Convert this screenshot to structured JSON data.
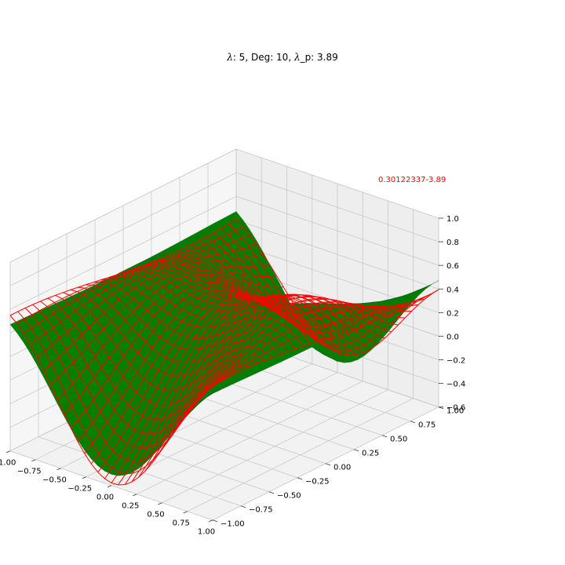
{
  "chart_data": {
    "type": "surface3d",
    "title": {
      "lambda_symbol": "λ",
      "lambda_value_text": ": 5, Deg: 10, ",
      "lambda_p_symbol": "λ",
      "lambda_p_text": "_p: 3.89"
    },
    "annotation": "0.30122337-3.89",
    "x_ticks": [
      "−1.00",
      "−0.75",
      "−0.50",
      "−0.25",
      "0.00",
      "0.25",
      "0.50",
      "0.75",
      "1.00"
    ],
    "y_ticks": [
      "−1.00",
      "−0.75",
      "−0.50",
      "−0.25",
      "0.00",
      "0.25",
      "0.50",
      "0.75",
      "1.00"
    ],
    "z_ticks": [
      "−0.6",
      "−0.4",
      "−0.2",
      "0.0",
      "0.2",
      "0.4",
      "0.6",
      "0.8",
      "1.0"
    ],
    "xlim": [
      -1,
      1
    ],
    "ylim": [
      -1,
      1
    ],
    "zlim": [
      -0.6,
      1.0
    ],
    "grid": true,
    "series": [
      {
        "kind": "surface",
        "color": "#008000"
      },
      {
        "kind": "wireframe",
        "color": "#ff0000"
      }
    ]
  }
}
